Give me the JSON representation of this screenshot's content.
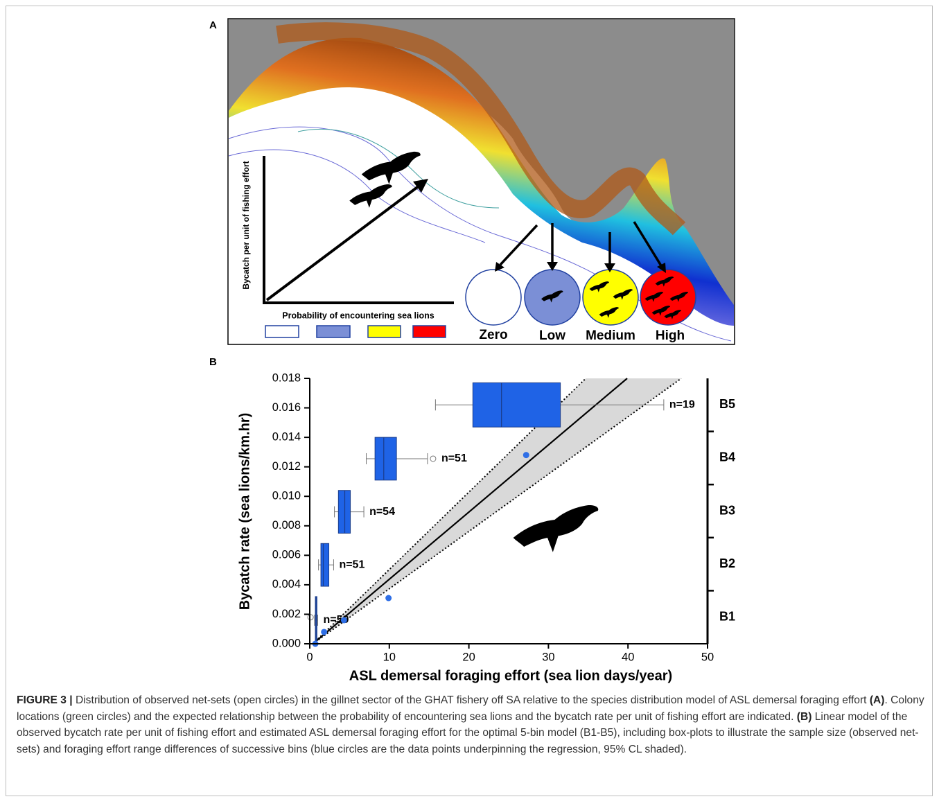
{
  "panel_a": {
    "label": "A",
    "y_axis_label": "Bycatch per unit of fishing effort",
    "legend_title": "Probability of encountering sea lions",
    "levels": [
      "Zero",
      "Low",
      "Medium",
      "High"
    ]
  },
  "chart_data": {
    "type": "box",
    "panel_label": "B",
    "x_label": "ASL demersal foraging effort (sea lion days/year)",
    "y_label": "Bycatch rate (sea lions/km.hr)",
    "xlim": [
      0,
      50
    ],
    "xticks": [
      0,
      10,
      20,
      30,
      40,
      50
    ],
    "ylim": [
      0,
      0.018
    ],
    "yticks": [
      {
        "value": 0,
        "label": "0.000"
      },
      {
        "value": 0.002,
        "label": "0.002"
      },
      {
        "value": 0.004,
        "label": "0.004"
      },
      {
        "value": 0.006,
        "label": "0.006"
      },
      {
        "value": 0.008,
        "label": "0.008"
      },
      {
        "value": 0.01,
        "label": "0.010"
      },
      {
        "value": 0.012,
        "label": "0.012"
      },
      {
        "value": 0.014,
        "label": "0.014"
      },
      {
        "value": 0.016,
        "label": "0.016"
      },
      {
        "value": 0.018,
        "label": "0.018"
      }
    ],
    "y2_categories": [
      "B1",
      "B2",
      "B3",
      "B4",
      "B5"
    ],
    "box_color": "#1f63e6",
    "boxes": [
      {
        "whislo": 0.6,
        "q1": 0.7,
        "med": 0.8,
        "q3": 0.9,
        "whishi": 1.0,
        "y": [
          0,
          0.0032
        ],
        "outliers": {
          "x": [
            0.1
          ],
          "y": [
            0.0018
          ]
        },
        "label": "n=59"
      },
      {
        "whislo": 1.1,
        "q1": 1.4,
        "med": 1.7,
        "q3": 2.4,
        "whishi": 3.0,
        "y": [
          0.0039,
          0.0068
        ],
        "outliers": {
          "x": [],
          "y": []
        },
        "label": "n=51"
      },
      {
        "whislo": 3.1,
        "q1": 3.6,
        "med": 4.4,
        "q3": 5.1,
        "whishi": 6.8,
        "y": [
          0.0075,
          0.0104
        ],
        "outliers": {
          "x": [],
          "y": []
        },
        "label": "n=54"
      },
      {
        "whislo": 7.1,
        "q1": 8.2,
        "med": 9.3,
        "q3": 10.9,
        "whishi": 14.8,
        "y": [
          0.0111,
          0.014
        ],
        "outliers": {
          "x": [
            15.5
          ],
          "y": [
            0.01255
          ]
        },
        "label": "n=51"
      },
      {
        "whislo": 15.8,
        "q1": 20.5,
        "med": 24.1,
        "q3": 31.5,
        "whishi": 44.5,
        "y": [
          0.0147,
          0.0177
        ],
        "outliers": {
          "x": [],
          "y": []
        },
        "label": "n=19"
      }
    ],
    "points": {
      "color": "#2f6fe6",
      "x": [
        0.7,
        1.8,
        4.3,
        9.9,
        27.2
      ],
      "y": [
        0.0,
        0.0008,
        0.0016,
        0.0031,
        0.0128
      ]
    },
    "fit": {
      "x": [
        0.4,
        39.9
      ],
      "y": [
        0,
        0.018
      ]
    },
    "ci_upper": {
      "x": [
        0.4,
        34.7
      ],
      "y": [
        0,
        0.018
      ]
    },
    "ci_lower": {
      "x": [
        0.4,
        46.7
      ],
      "y": [
        0,
        0.018
      ]
    },
    "ci_color": "#d9d9d9"
  },
  "caption": {
    "label": "FIGURE 3 |",
    "segments": [
      " Distribution of observed net-sets (open circles) in the gillnet sector of the GHAT fishery off SA relative to the species distribution model of ASL demersal foraging effort ",
      "(A)",
      ". Colony locations (green circles) and the expected relationship between the probability of encountering sea lions and the bycatch rate per unit of fishing effort are indicated. ",
      "(B)",
      " Linear model of the observed bycatch rate per unit of fishing effort and estimated ASL demersal foraging effort for the optimal 5-bin model (B1-B5), including box-plots to illustrate the sample size (observed net-sets) and foraging effort range differences of successive bins (blue circles are the data points underpinning the regression, 95% CL shaded)."
    ]
  }
}
